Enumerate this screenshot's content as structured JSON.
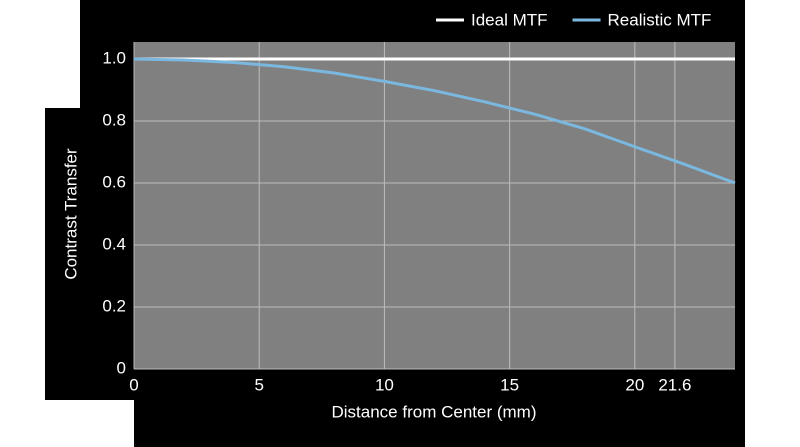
{
  "chart_data": {
    "type": "line",
    "xlabel": "Distance from Center (mm)",
    "ylabel": "Contrast Transfer",
    "series": [
      {
        "name": "Ideal MTF",
        "color": "#ffffff",
        "x": [
          0,
          24
        ],
        "values": [
          1,
          1
        ]
      },
      {
        "name": "Realistic MTF",
        "color": "#7ab8e0",
        "x": [
          0,
          2,
          4,
          6,
          8,
          10,
          12,
          14,
          16,
          18,
          20,
          22,
          24
        ],
        "values": [
          1.0,
          0.997,
          0.989,
          0.975,
          0.955,
          0.928,
          0.898,
          0.862,
          0.822,
          0.775,
          0.717,
          0.66,
          0.6
        ]
      }
    ],
    "xlim": [
      0,
      24
    ],
    "xticks": [
      0,
      5,
      10,
      15,
      20,
      21.6
    ],
    "ylim": [
      0,
      1.055
    ],
    "yticks": [
      0,
      0.2,
      0.4,
      0.6,
      0.8,
      {
        "value": 1,
        "label": "1.0"
      }
    ],
    "grid": true,
    "legend": "top-right"
  }
}
